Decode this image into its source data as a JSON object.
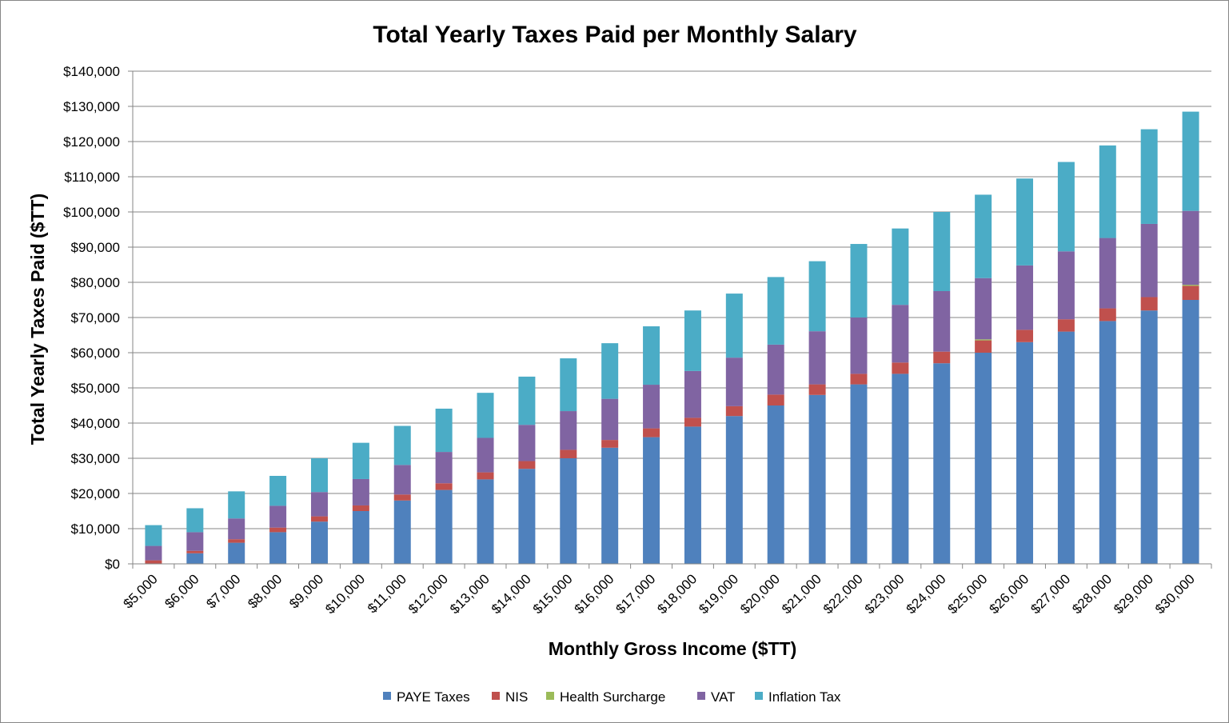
{
  "chart_data": {
    "type": "bar",
    "stacked": true,
    "title": "Total Yearly Taxes Paid per Monthly Salary",
    "xlabel": "Monthly Gross Income ($TT)",
    "ylabel": "Total Yearly Taxes Paid ($TT)",
    "ylim": [
      0,
      140000
    ],
    "yticks": [
      0,
      10000,
      20000,
      30000,
      40000,
      50000,
      60000,
      70000,
      80000,
      90000,
      100000,
      110000,
      120000,
      130000,
      140000
    ],
    "ytick_labels": [
      "$0",
      "$10,000",
      "$20,000",
      "$30,000",
      "$40,000",
      "$50,000",
      "$60,000",
      "$70,000",
      "$80,000",
      "$90,000",
      "$100,000",
      "$110,000",
      "$120,000",
      "$130,000",
      "$140,000"
    ],
    "grid": true,
    "legend_position": "bottom",
    "categories": [
      "$5,000",
      "$6,000",
      "$7,000",
      "$8,000",
      "$9,000",
      "$10,000",
      "$11,000",
      "$12,000",
      "$13,000",
      "$14,000",
      "$15,000",
      "$16,000",
      "$17,000",
      "$18,000",
      "$19,000",
      "$20,000",
      "$21,000",
      "$22,000",
      "$23,000",
      "$24,000",
      "$25,000",
      "$26,000",
      "$27,000",
      "$28,000",
      "$29,000",
      "$30,000"
    ],
    "series": [
      {
        "name": "PAYE Taxes",
        "color": "#4F81BD",
        "values": [
          0,
          3000,
          6000,
          9000,
          12000,
          15000,
          18000,
          21000,
          24000,
          27000,
          30000,
          33000,
          36000,
          39000,
          42000,
          45000,
          48000,
          51000,
          54000,
          57000,
          60000,
          63000,
          66000,
          69000,
          72000,
          75000
        ]
      },
      {
        "name": "NIS",
        "color": "#C0504D",
        "values": [
          1000,
          700,
          1000,
          1300,
          1500,
          1600,
          1700,
          1900,
          2000,
          2200,
          2400,
          2200,
          2500,
          2500,
          2800,
          3100,
          3000,
          3000,
          3200,
          3300,
          3500,
          3500,
          3500,
          3600,
          3800,
          4000
        ]
      },
      {
        "name": "Health Surcharge",
        "color": "#9BBB59",
        "values": [
          0,
          0,
          0,
          0,
          0,
          0,
          0,
          0,
          0,
          0,
          0,
          0,
          0,
          0,
          0,
          0,
          0,
          0,
          0,
          0,
          300,
          0,
          0,
          0,
          0,
          300
        ]
      },
      {
        "name": "VAT",
        "color": "#8064A2",
        "values": [
          4100,
          5300,
          5900,
          6200,
          6900,
          7500,
          8400,
          8900,
          9800,
          10300,
          11000,
          11700,
          12400,
          13300,
          13800,
          14200,
          15100,
          16000,
          16400,
          17200,
          17400,
          18300,
          19300,
          20000,
          20800,
          21000
        ]
      },
      {
        "name": "Inflation Tax",
        "color": "#4BACC6",
        "values": [
          5900,
          6800,
          7700,
          8500,
          9600,
          10300,
          11100,
          12300,
          12800,
          13700,
          15000,
          15800,
          16600,
          17200,
          18200,
          19200,
          19900,
          20900,
          21700,
          22500,
          23700,
          24700,
          25400,
          26300,
          26900,
          28200
        ]
      }
    ]
  }
}
